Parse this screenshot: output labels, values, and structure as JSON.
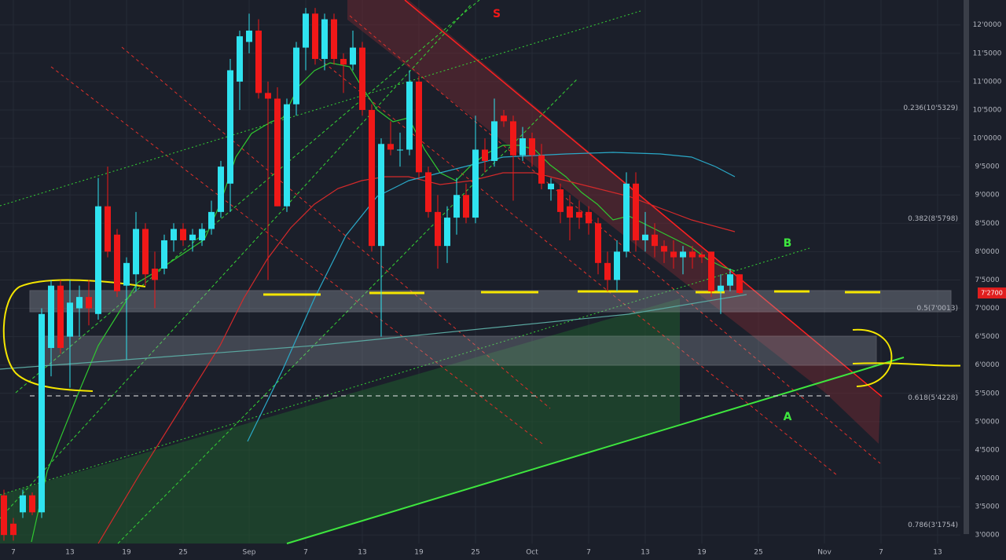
{
  "chart_data": {
    "type": "candlestick",
    "categories": [
      null,
      "7",
      null,
      null,
      null,
      null,
      null,
      "13",
      null,
      null,
      null,
      null,
      null,
      "19",
      null,
      null,
      null,
      null,
      null,
      "25",
      null,
      null,
      null,
      null,
      null,
      null,
      "Sep",
      null,
      null,
      null,
      null,
      null,
      "7",
      null,
      null,
      null,
      null,
      null,
      "13",
      null,
      null,
      null,
      null,
      null,
      "19",
      null,
      null,
      null,
      null,
      null,
      "25",
      null,
      null,
      null,
      null,
      null,
      "Oct",
      null,
      null,
      null,
      null,
      null,
      "7",
      null,
      null,
      null,
      null,
      null,
      "13",
      null,
      null,
      null,
      null,
      null,
      "19",
      null,
      null,
      null,
      null,
      null,
      "25",
      null,
      null,
      null,
      null,
      null,
      null,
      "Nov",
      null,
      null,
      null,
      null,
      null,
      "7",
      null,
      null,
      null,
      null,
      null,
      "13",
      null
    ],
    "open": [
      3700,
      3200,
      3400,
      3700,
      3400,
      6300,
      7400,
      6500,
      7000,
      7200,
      6900,
      8800,
      8300,
      7400,
      7600,
      8400,
      7700,
      7700,
      8200,
      8400,
      8200,
      8200,
      8400,
      8700,
      9200,
      11000,
      11700,
      11900,
      10800,
      10700,
      8800,
      10600,
      11600,
      12200,
      11400,
      12100,
      11400,
      11300,
      11600,
      10500,
      8100,
      9900,
      9800,
      9800,
      11000,
      9400,
      8700,
      8100,
      8600,
      9000,
      8600,
      9800,
      9600,
      10400,
      10300,
      9700,
      10000,
      9700,
      9100,
      9100,
      8800,
      8700,
      8700,
      8500,
      7800,
      7500,
      8000,
      9200,
      8200,
      8300,
      8100,
      8000,
      7900,
      8000,
      7950,
      8000,
      7300,
      7400,
      7600,
      null,
      null,
      null,
      null,
      null,
      null,
      null,
      null,
      null,
      null,
      null,
      null,
      null,
      null,
      null,
      null,
      null,
      null,
      null,
      null,
      null,
      null
    ],
    "high": [
      3800,
      3300,
      3800,
      3750,
      7000,
      7500,
      7500,
      7500,
      7400,
      7500,
      9300,
      9500,
      8400,
      7900,
      8700,
      8500,
      8000,
      8300,
      8500,
      8500,
      8400,
      8500,
      8900,
      9600,
      11400,
      11900,
      12200,
      12100,
      11000,
      10900,
      10700,
      11700,
      12300,
      12300,
      12200,
      12200,
      11500,
      11900,
      11700,
      10600,
      10000,
      10300,
      10100,
      11200,
      11100,
      9500,
      9000,
      8800,
      9300,
      9200,
      10400,
      10000,
      10700,
      10500,
      10400,
      10200,
      10100,
      9900,
      9300,
      9200,
      9000,
      8900,
      8800,
      8600,
      8000,
      8200,
      9400,
      9400,
      8700,
      8500,
      8200,
      8200,
      8100,
      8100,
      8000,
      8000,
      7600,
      7700,
      7600,
      null,
      null,
      null,
      null,
      null,
      null,
      null,
      null,
      null,
      null,
      null,
      null,
      null,
      null,
      null,
      null,
      null,
      null,
      null,
      null,
      null,
      null
    ],
    "low": [
      2900,
      2900,
      3300,
      3350,
      3300,
      5800,
      6200,
      5600,
      6500,
      6700,
      6800,
      7900,
      7200,
      6100,
      7300,
      7400,
      7000,
      7600,
      8000,
      8100,
      8000,
      8100,
      8300,
      8600,
      8700,
      10500,
      11500,
      10700,
      7500,
      8800,
      8700,
      10400,
      11200,
      11300,
      11200,
      11300,
      10800,
      11200,
      10400,
      8000,
      6500,
      9700,
      9500,
      9700,
      9300,
      8600,
      7700,
      7800,
      8300,
      8500,
      8500,
      9400,
      9500,
      10200,
      8900,
      9600,
      9500,
      9100,
      8900,
      8500,
      8200,
      8400,
      8300,
      7600,
      7300,
      7300,
      7900,
      8000,
      8000,
      7900,
      7800,
      7700,
      7600,
      7700,
      7800,
      7200,
      6900,
      7300,
      7250,
      null,
      null,
      null,
      null,
      null,
      null,
      null,
      null,
      null,
      null,
      null,
      null,
      null,
      null,
      null,
      null,
      null,
      null,
      null,
      null,
      null,
      null
    ],
    "close": [
      3000,
      3000,
      3700,
      3400,
      6900,
      7400,
      6300,
      7100,
      7200,
      7000,
      8800,
      8000,
      7300,
      7800,
      8400,
      7600,
      7500,
      8200,
      8400,
      8200,
      8300,
      8400,
      8700,
      9500,
      11200,
      11800,
      11900,
      10800,
      10700,
      8800,
      10600,
      11600,
      12200,
      11400,
      12100,
      11400,
      11300,
      11600,
      10500,
      8100,
      9900,
      9800,
      9800,
      11000,
      9400,
      8700,
      8100,
      8600,
      9000,
      8600,
      9800,
      9600,
      10300,
      10300,
      9700,
      10000,
      9700,
      9200,
      9200,
      8700,
      8600,
      8600,
      8500,
      7800,
      7500,
      8000,
      9200,
      8200,
      8300,
      8100,
      8000,
      7900,
      8000,
      7900,
      7900,
      7300,
      7400,
      7600,
      7270,
      null,
      null,
      null,
      null,
      null,
      null,
      null,
      null,
      null,
      null,
      null,
      null,
      null,
      null,
      null,
      null,
      null,
      null,
      null,
      null,
      null,
      null
    ],
    "up_color": "#2fe3f0",
    "down_color": "#f01818",
    "ylim": [
      2850,
      12440
    ],
    "yticks": [
      {
        "value": 3000,
        "label": "3'0000"
      },
      {
        "value": 3500,
        "label": "3'5000"
      },
      {
        "value": 4000,
        "label": "4'0000"
      },
      {
        "value": 4500,
        "label": "4'5000"
      },
      {
        "value": 5000,
        "label": "5'0000"
      },
      {
        "value": 5500,
        "label": "5'5000"
      },
      {
        "value": 6000,
        "label": "6'0000"
      },
      {
        "value": 6500,
        "label": "6'5000"
      },
      {
        "value": 7000,
        "label": "7'0000"
      },
      {
        "value": 7500,
        "label": "7'5000"
      },
      {
        "value": 8000,
        "label": "8'0000"
      },
      {
        "value": 8500,
        "label": "8'5000"
      },
      {
        "value": 9000,
        "label": "9'0000"
      },
      {
        "value": 9500,
        "label": "9'5000"
      },
      {
        "value": 10000,
        "label": "10'0000"
      },
      {
        "value": 10500,
        "label": "10'5000"
      },
      {
        "value": 11000,
        "label": "11'0000"
      },
      {
        "value": 11500,
        "label": "11'5000"
      },
      {
        "value": 12000,
        "label": "12'0000"
      }
    ],
    "fib_levels": [
      {
        "value": 10532.9,
        "label": "0.236(10'5329)"
      },
      {
        "value": 8579.8,
        "label": "0.382(8'5798)"
      },
      {
        "value": 7001.3,
        "label": "0.5(7'0013)"
      },
      {
        "value": 5422.8,
        "label": "0.618(5'4228)"
      },
      {
        "value": 3175.4,
        "label": "0.786(3'1754)"
      }
    ],
    "last_price": {
      "value": 7270,
      "label": "7'2700"
    },
    "annotations": [
      "S",
      "B",
      "A"
    ],
    "grid": true
  }
}
